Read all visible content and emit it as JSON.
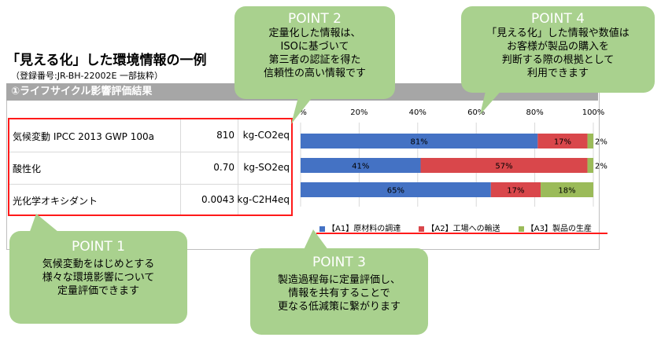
{
  "heading": {
    "title": "「見える化」した環境情報の一例",
    "subtitle": "（登録番号:JR-BH-22002E 一部抜粋）"
  },
  "panel": {
    "header": "①ライフサイクル影響評価結果"
  },
  "impact_table": {
    "rows": [
      {
        "category": "気候変動 IPCC 2013 GWP 100a",
        "value": "810",
        "unit": "kg-CO2eq"
      },
      {
        "category": "酸性化",
        "value": "0.70",
        "unit": "kg-SO2eq"
      },
      {
        "category": "光化学オキシダント",
        "value": "0.0043",
        "unit": "kg-C2H4eq"
      }
    ]
  },
  "callouts": {
    "point1": {
      "title": "POINT 1",
      "body": "気候変動をはじめとする\n様々な環境影響について\n定量評価できます"
    },
    "point2": {
      "title": "POINT 2",
      "body": "定量化した情報は、\nISOに基づいて\n第三者の認証を得た\n信頼性の高い情報です"
    },
    "point3": {
      "title": "POINT 3",
      "body": "製造過程毎に定量評価し、\n情報を共有することで\n更なる低減策に繋がります"
    },
    "point4": {
      "title": "POINT 4",
      "body": "「見える化」した情報や数値は\nお客様が製品の購入を\n判断する際の根拠として\n利用できます"
    }
  },
  "chart_data": {
    "type": "bar",
    "orientation": "horizontal",
    "stacked": true,
    "categories": [
      "気候変動 IPCC 2013 GWP 100a",
      "酸性化",
      "光化学オキシダント"
    ],
    "xlim": [
      0,
      100
    ],
    "x_ticks": [
      "0%",
      "20%",
      "40%",
      "60%",
      "80%",
      "100%"
    ],
    "series": [
      {
        "name": "【A1】原材料の調達",
        "values": [
          81,
          41,
          65
        ],
        "labels": [
          "81%",
          "41%",
          "65%"
        ],
        "color": "#4472c4"
      },
      {
        "name": "【A2】工場への輸送",
        "values": [
          17,
          57,
          17
        ],
        "labels": [
          "17%",
          "57%",
          "17%"
        ],
        "color": "#d9474b"
      },
      {
        "name": "【A3】製品の生産",
        "values": [
          2,
          2,
          18
        ],
        "labels": [
          "2%",
          "2%",
          "18%"
        ],
        "color": "#9bbb59"
      }
    ],
    "legend_position": "bottom",
    "grid": true
  },
  "colors": {
    "callout_bg": "#a9d18e",
    "callout_title": "#ffffff",
    "highlight_red": "#ff1a1a",
    "panel_header_bg": "#a6a6a6"
  }
}
